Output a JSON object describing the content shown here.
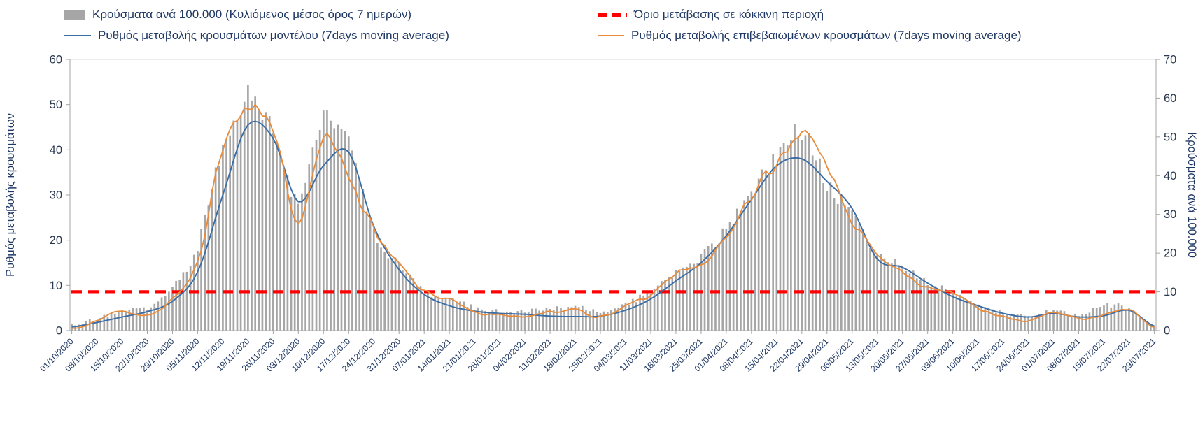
{
  "style": {
    "background": "#ffffff",
    "text_color": "#1f3864",
    "tick_text_color": "#2a3950",
    "axis_line_color": "#a6a6a6",
    "plot_top_border_color": "#d9d9d9"
  },
  "chart_data": {
    "type": "bar+line",
    "title": "",
    "left_axis": {
      "label": "Ρυθμός μεταβολής κρουσμάτων",
      "min": 0,
      "max": 60,
      "step": 10
    },
    "right_axis": {
      "label": "Κρούσματα ανά 100.000",
      "min": 0,
      "max": 70,
      "step": 10
    },
    "x_tick_labels": [
      "01/10/2020",
      "08/10/2020",
      "15/10/2020",
      "22/10/2020",
      "29/10/2020",
      "05/11/2020",
      "12/11/2020",
      "19/11/2020",
      "26/11/2020",
      "03/12/2020",
      "10/12/2020",
      "17/12/2020",
      "24/12/2020",
      "31/12/2020",
      "07/01/2021",
      "14/01/2021",
      "21/01/2021",
      "28/01/2021",
      "04/02/2021",
      "11/02/2021",
      "18/02/2021",
      "25/02/2021",
      "04/03/2021",
      "11/03/2021",
      "18/03/2021",
      "25/03/2021",
      "01/04/2021",
      "08/04/2021",
      "15/04/2021",
      "22/04/2021",
      "29/04/2021",
      "06/05/2021",
      "13/05/2021",
      "20/05/2021",
      "27/05/2021",
      "03/06/2021",
      "10/06/2021",
      "17/06/2021",
      "24/06/2021",
      "01/07/2021",
      "08/07/2021",
      "15/07/2021",
      "22/07/2021",
      "29/07/2021"
    ],
    "series": [
      {
        "name": "Κρούσματα ανά 100.000 (Κυλιόμενος μέσος όρος 7 ημερών)",
        "type": "bar",
        "axis": "right",
        "color": "#a6a6a6",
        "weekly_values": [
          1.5,
          3,
          5,
          6,
          11,
          22,
          48,
          60,
          52,
          33,
          55,
          49,
          26,
          17,
          10,
          8,
          6,
          5,
          5,
          5.5,
          6,
          5,
          7,
          10,
          15,
          19,
          26,
          35,
          45,
          52,
          38,
          30,
          20,
          17,
          12,
          10,
          7,
          4.5,
          4,
          5,
          4,
          6.5,
          5.5,
          1
        ]
      },
      {
        "name": "Ρυθμός μεταβολής κρουσμάτων μοντέλου (7days moving average)",
        "type": "line",
        "axis": "left",
        "color": "#3a6ca6",
        "weekly_values": [
          0.8,
          1.8,
          3,
          4.2,
          6.5,
          13,
          30,
          45.5,
          42.5,
          28.5,
          36.5,
          39.5,
          23,
          13.5,
          8,
          5.5,
          4.3,
          3.8,
          3.6,
          3.2,
          3.1,
          3.2,
          4.5,
          7,
          11,
          15,
          21,
          29,
          36.5,
          38,
          33,
          27,
          15.8,
          14,
          10.5,
          7.5,
          5.5,
          3.8,
          3,
          3.8,
          3,
          3.3,
          4.5,
          1
        ]
      },
      {
        "name": "Ρυθμός μεταβολής επιβεβαιωμένων κρουσμάτων (7days moving average)",
        "type": "line",
        "axis": "left",
        "color": "#e98b3a",
        "weekly_values": [
          0.3,
          2.3,
          4.5,
          3.2,
          7,
          15,
          40,
          49,
          44,
          24,
          43,
          34,
          22,
          15,
          8.5,
          7,
          4,
          3.5,
          3.2,
          4.2,
          4.6,
          3,
          5.5,
          8,
          13,
          14.5,
          20,
          30,
          37,
          43,
          36,
          24.5,
          16.5,
          13,
          9.5,
          8.5,
          5,
          3,
          2.2,
          4,
          2.5,
          3.5,
          4.8,
          0.5
        ]
      }
    ],
    "threshold": {
      "name": "Όριο μετάβασης σε κόκκινη περιοχή",
      "axis": "left",
      "value_left_axis": 8.6,
      "value_right_axis": 10,
      "color": "#ff0000",
      "style": "dashed"
    },
    "legend_position": "top",
    "grid": "off"
  }
}
